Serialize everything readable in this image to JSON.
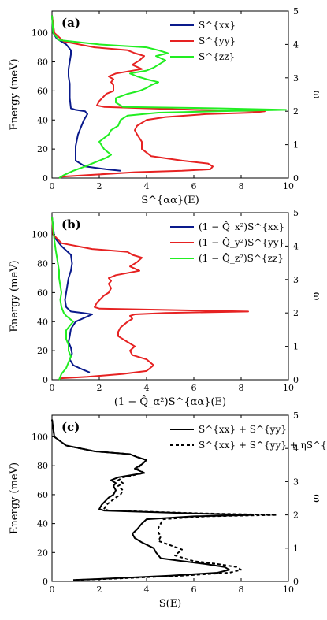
{
  "chart_data": [
    {
      "type": "line",
      "panel_label": "(a)",
      "xlabel": "S^{αα}(E)",
      "ylabel": "Energy (meV)",
      "y2label": "ω",
      "xlim": [
        0,
        10
      ],
      "ylim": [
        0,
        115
      ],
      "y2lim": [
        0,
        5
      ],
      "xticks": [
        0,
        2,
        4,
        6,
        8,
        10
      ],
      "yticks": [
        0,
        20,
        40,
        60,
        80,
        100
      ],
      "y2ticks": [
        0,
        1,
        2,
        3,
        4,
        5
      ],
      "legend_position": "top-right",
      "series": [
        {
          "name": "S^{xx}",
          "color": "#0a1a8c",
          "dash": "",
          "x": [
            2.9,
            2.3,
            1.4,
            1.0,
            1.0,
            1.0,
            1.05,
            1.1,
            1.2,
            1.35,
            1.5,
            1.4,
            1.0,
            0.8,
            0.75,
            0.75,
            0.75,
            0.7,
            0.7,
            0.75,
            0.8,
            0.8,
            0.6,
            0.2,
            0.05,
            0.0
          ],
          "y": [
            5,
            6,
            8,
            12,
            18,
            22,
            26,
            30,
            34,
            40,
            44,
            46,
            47,
            48,
            55,
            60,
            65,
            70,
            75,
            80,
            85,
            88,
            92,
            96,
            100,
            112
          ]
        },
        {
          "name": "S^{yy}",
          "color": "#e62222",
          "dash": "",
          "x": [
            0.4,
            1.5,
            3.5,
            5.5,
            6.7,
            6.8,
            6.6,
            5.5,
            4.2,
            3.8,
            3.8,
            3.6,
            3.5,
            3.6,
            4.0,
            4.8,
            6.5,
            8.5,
            9.0,
            6.0,
            2.2,
            1.9,
            2.0,
            2.3,
            2.6,
            2.6,
            2.5,
            2.6,
            2.4,
            2.7,
            3.8,
            3.4,
            3.7,
            3.9,
            3.5,
            3.2,
            1.8,
            0.5,
            0.1,
            0.0
          ],
          "y": [
            1,
            2,
            4,
            5,
            6,
            8,
            10,
            12,
            15,
            20,
            25,
            30,
            33,
            36,
            40,
            42,
            44,
            45,
            46,
            47,
            49,
            50,
            53,
            58,
            60,
            64,
            66,
            68,
            70,
            72,
            75,
            78,
            81,
            84,
            86,
            88,
            90,
            94,
            100,
            112
          ]
        },
        {
          "name": "S^{zz}",
          "color": "#22ee22",
          "dash": "",
          "x": [
            0.3,
            0.5,
            0.9,
            1.4,
            1.7,
            2.0,
            2.3,
            2.5,
            2.2,
            2.0,
            2.4,
            2.5,
            2.8,
            2.9,
            3.2,
            4.5,
            7.0,
            9.9,
            7.0,
            3.0,
            2.7,
            2.7,
            3.2,
            3.7,
            4.0,
            4.2,
            4.5,
            4.0,
            3.6,
            3.3,
            4.0,
            4.3,
            4.5,
            4.8,
            4.4,
            4.9,
            4.5,
            4.0,
            2.0,
            0.3,
            0.05,
            0.0
          ],
          "y": [
            0,
            2,
            5,
            8,
            10,
            12,
            14,
            16,
            20,
            25,
            30,
            33,
            36,
            40,
            43,
            45,
            46,
            47,
            48,
            49,
            52,
            55,
            58,
            60,
            62,
            64,
            66,
            68,
            70,
            72,
            74,
            76,
            78,
            81,
            84,
            86,
            88,
            90,
            92,
            95,
            100,
            112
          ]
        }
      ]
    },
    {
      "type": "line",
      "panel_label": "(b)",
      "xlabel": "(1 − Q̂_α²)S^{αα}(E)",
      "ylabel": "Energy (meV)",
      "y2label": "ω",
      "xlim": [
        0,
        10
      ],
      "ylim": [
        0,
        115
      ],
      "y2lim": [
        0,
        5
      ],
      "xticks": [
        0,
        2,
        4,
        6,
        8,
        10
      ],
      "yticks": [
        0,
        20,
        40,
        60,
        80,
        100
      ],
      "y2ticks": [
        0,
        1,
        2,
        3,
        4,
        5
      ],
      "legend_position": "top-right",
      "series": [
        {
          "name": "(1 − Q̂_x²)S^{xx}",
          "color": "#0a1a8c",
          "dash": "",
          "x": [
            1.6,
            1.3,
            0.9,
            0.75,
            0.85,
            0.8,
            0.7,
            0.75,
            0.8,
            1.0,
            1.7,
            1.3,
            0.8,
            0.6,
            0.55,
            0.6,
            0.65,
            0.7,
            0.8,
            0.85,
            0.8,
            0.4,
            0.1,
            0.0
          ],
          "y": [
            5,
            7,
            10,
            14,
            18,
            22,
            26,
            30,
            35,
            40,
            45,
            46,
            47,
            50,
            55,
            60,
            65,
            70,
            75,
            80,
            86,
            92,
            98,
            112
          ]
        },
        {
          "name": "(1 − Q̂_y²)S^{yy}",
          "color": "#e62222",
          "dash": "",
          "x": [
            0.3,
            1.5,
            3.0,
            4.0,
            4.3,
            4.0,
            3.4,
            3.3,
            3.5,
            3.2,
            2.8,
            2.8,
            2.9,
            3.2,
            3.4,
            3.3,
            3.5,
            4.8,
            8.3,
            5.0,
            2.0,
            1.8,
            1.9,
            2.2,
            2.4,
            2.5,
            2.4,
            2.5,
            2.4,
            2.7,
            3.7,
            3.3,
            3.6,
            3.8,
            3.4,
            3.2,
            1.7,
            0.4,
            0.05,
            0.0
          ],
          "y": [
            1,
            2,
            4,
            6,
            10,
            14,
            17,
            20,
            23,
            26,
            30,
            33,
            36,
            40,
            42,
            44,
            45,
            46,
            47,
            48,
            49,
            50,
            53,
            58,
            60,
            63,
            66,
            68,
            70,
            72,
            75,
            78,
            81,
            84,
            86,
            88,
            90,
            94,
            100,
            112
          ]
        },
        {
          "name": "(1 − Q̂_z²)S^{zz}",
          "color": "#22ee22",
          "dash": "",
          "x": [
            0.3,
            0.4,
            0.6,
            0.7,
            0.8,
            0.7,
            0.7,
            0.6,
            0.6,
            0.9,
            0.6,
            0.5,
            0.4,
            0.35,
            0.4,
            0.35,
            0.3,
            0.3,
            0.25,
            0.2,
            0.15,
            0.1,
            0.0
          ],
          "y": [
            0,
            4,
            8,
            12,
            16,
            20,
            24,
            28,
            34,
            40,
            44,
            46,
            50,
            55,
            60,
            65,
            70,
            75,
            80,
            85,
            90,
            96,
            112
          ]
        }
      ]
    },
    {
      "type": "line",
      "panel_label": "(c)",
      "xlabel": "S(E)",
      "ylabel": "Energy (meV)",
      "y2label": "ω",
      "xlim": [
        0,
        10
      ],
      "ylim": [
        0,
        115
      ],
      "y2lim": [
        0,
        5
      ],
      "xticks": [
        0,
        2,
        4,
        6,
        8,
        10
      ],
      "yticks": [
        0,
        20,
        40,
        60,
        80,
        100
      ],
      "y2ticks": [
        0,
        1,
        2,
        3,
        4,
        5
      ],
      "legend_position": "top-right",
      "series": [
        {
          "name": "S^{xx} + S^{yy}",
          "color": "#000000",
          "dash": "",
          "x": [
            0.9,
            2.5,
            5.0,
            7.0,
            7.5,
            7.3,
            6.5,
            5.5,
            4.6,
            4.4,
            4.3,
            3.8,
            3.5,
            3.4,
            3.6,
            3.8,
            4.0,
            6.0,
            8.5,
            6.0,
            2.2,
            2.0,
            2.1,
            2.4,
            2.6,
            2.7,
            2.6,
            2.7,
            2.5,
            2.8,
            3.9,
            3.5,
            3.8,
            4.0,
            3.6,
            3.3,
            1.8,
            0.6,
            0.1,
            0.0
          ],
          "y": [
            1,
            2,
            4,
            6,
            8,
            10,
            12,
            14,
            16,
            20,
            23,
            27,
            30,
            33,
            36,
            40,
            43,
            45,
            46,
            47,
            49,
            50,
            53,
            58,
            60,
            63,
            66,
            68,
            70,
            72,
            75,
            78,
            81,
            84,
            86,
            88,
            90,
            94,
            100,
            112
          ]
        },
        {
          "name": "S^{xx} + S^{yy} + ηS^{zz}",
          "color": "#000000",
          "dash": "4,3",
          "x": [
            1.0,
            2.8,
            5.5,
            7.5,
            8.0,
            7.8,
            7.0,
            6.0,
            5.2,
            5.5,
            5.0,
            4.5,
            4.6,
            4.5,
            4.5,
            4.6,
            4.7,
            6.5,
            9.5,
            6.5,
            2.4,
            2.2,
            2.3,
            2.7,
            2.9,
            3.0,
            2.8,
            3.0,
            2.8,
            3.0,
            3.9,
            3.6,
            3.8,
            4.0,
            3.6,
            3.3,
            1.8,
            0.6,
            0.1,
            0.0
          ],
          "y": [
            1,
            2,
            4,
            6,
            8,
            10,
            12,
            14,
            18,
            22,
            25,
            28,
            31,
            34,
            37,
            40,
            43,
            45,
            46,
            47,
            49,
            50,
            53,
            58,
            60,
            63,
            66,
            68,
            70,
            72,
            75,
            78,
            81,
            84,
            86,
            88,
            90,
            94,
            100,
            112
          ]
        }
      ]
    }
  ]
}
